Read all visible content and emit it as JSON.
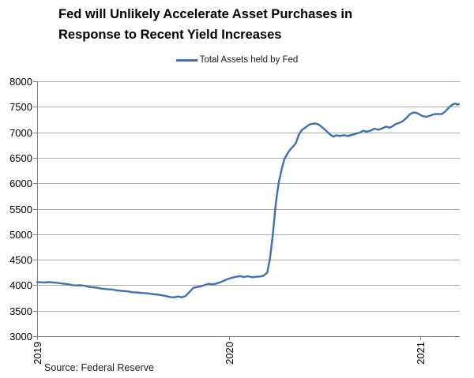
{
  "title": "Fed will Unlikely Accelerate Asset Purchases in Response to Recent Yield Increases",
  "legend": {
    "label": "Total Assets held by Fed"
  },
  "source": "Source: Federal Reserve",
  "colors": {
    "line": "#3c70b9",
    "axis": "#7f7f7f",
    "gridline": "#acacac",
    "text": "#000000"
  },
  "chart_data": {
    "type": "line",
    "title": "Fed will Unlikely Accelerate Asset Purchases in Response to Recent Yield Increases",
    "xlabel": "",
    "ylabel": "",
    "grid": true,
    "legend_position": "top",
    "x_ticks": [
      2019,
      2020,
      2021
    ],
    "y_ticks": [
      3000,
      3500,
      4000,
      4500,
      5000,
      5500,
      6000,
      6500,
      7000,
      7500,
      8000
    ],
    "xlim": [
      2019,
      2021.205
    ],
    "ylim": [
      3000,
      8000
    ],
    "series": [
      {
        "name": "Total Assets held by Fed",
        "color": "#3c70b9",
        "points": [
          [
            2019.0,
            4060
          ],
          [
            2019.02,
            4058
          ],
          [
            2019.04,
            4052
          ],
          [
            2019.06,
            4060
          ],
          [
            2019.08,
            4055
          ],
          [
            2019.1,
            4048
          ],
          [
            2019.12,
            4038
          ],
          [
            2019.14,
            4028
          ],
          [
            2019.16,
            4020
          ],
          [
            2019.185,
            4000
          ],
          [
            2019.205,
            3996
          ],
          [
            2019.225,
            3998
          ],
          [
            2019.25,
            3988
          ],
          [
            2019.27,
            3968
          ],
          [
            2019.29,
            3960
          ],
          [
            2019.31,
            3952
          ],
          [
            2019.33,
            3935
          ],
          [
            2019.35,
            3928
          ],
          [
            2019.37,
            3920
          ],
          [
            2019.395,
            3915
          ],
          [
            2019.415,
            3898
          ],
          [
            2019.435,
            3892
          ],
          [
            2019.455,
            3885
          ],
          [
            2019.475,
            3878
          ],
          [
            2019.495,
            3862
          ],
          [
            2019.515,
            3858
          ],
          [
            2019.535,
            3852
          ],
          [
            2019.555,
            3846
          ],
          [
            2019.575,
            3840
          ],
          [
            2019.595,
            3830
          ],
          [
            2019.615,
            3820
          ],
          [
            2019.635,
            3812
          ],
          [
            2019.655,
            3798
          ],
          [
            2019.675,
            3785
          ],
          [
            2019.695,
            3768
          ],
          [
            2019.715,
            3762
          ],
          [
            2019.735,
            3778
          ],
          [
            2019.755,
            3763
          ],
          [
            2019.775,
            3790
          ],
          [
            2019.795,
            3868
          ],
          [
            2019.815,
            3948
          ],
          [
            2019.835,
            3965
          ],
          [
            2019.855,
            3978
          ],
          [
            2019.875,
            4005
          ],
          [
            2019.895,
            4028
          ],
          [
            2019.915,
            4016
          ],
          [
            2019.935,
            4032
          ],
          [
            2019.955,
            4058
          ],
          [
            2019.975,
            4090
          ],
          [
            2020.0,
            4128
          ],
          [
            2020.02,
            4150
          ],
          [
            2020.04,
            4165
          ],
          [
            2020.06,
            4178
          ],
          [
            2020.08,
            4160
          ],
          [
            2020.1,
            4176
          ],
          [
            2020.12,
            4155
          ],
          [
            2020.14,
            4164
          ],
          [
            2020.16,
            4170
          ],
          [
            2020.18,
            4182
          ],
          [
            2020.2,
            4245
          ],
          [
            2020.215,
            4530
          ],
          [
            2020.23,
            5000
          ],
          [
            2020.245,
            5600
          ],
          [
            2020.26,
            6000
          ],
          [
            2020.275,
            6265
          ],
          [
            2020.29,
            6475
          ],
          [
            2020.305,
            6575
          ],
          [
            2020.32,
            6660
          ],
          [
            2020.335,
            6720
          ],
          [
            2020.35,
            6790
          ],
          [
            2020.365,
            6950
          ],
          [
            2020.38,
            7040
          ],
          [
            2020.4,
            7095
          ],
          [
            2020.42,
            7150
          ],
          [
            2020.44,
            7168
          ],
          [
            2020.455,
            7170
          ],
          [
            2020.47,
            7148
          ],
          [
            2020.49,
            7090
          ],
          [
            2020.51,
            7020
          ],
          [
            2020.53,
            6950
          ],
          [
            2020.545,
            6915
          ],
          [
            2020.56,
            6940
          ],
          [
            2020.58,
            6928
          ],
          [
            2020.6,
            6942
          ],
          [
            2020.62,
            6928
          ],
          [
            2020.645,
            6950
          ],
          [
            2020.665,
            6975
          ],
          [
            2020.685,
            6995
          ],
          [
            2020.7,
            7030
          ],
          [
            2020.72,
            7012
          ],
          [
            2020.74,
            7032
          ],
          [
            2020.76,
            7070
          ],
          [
            2020.78,
            7050
          ],
          [
            2020.8,
            7075
          ],
          [
            2020.82,
            7110
          ],
          [
            2020.84,
            7090
          ],
          [
            2020.855,
            7120
          ],
          [
            2020.87,
            7160
          ],
          [
            2020.885,
            7180
          ],
          [
            2020.905,
            7210
          ],
          [
            2020.925,
            7275
          ],
          [
            2020.945,
            7355
          ],
          [
            2020.965,
            7390
          ],
          [
            2020.985,
            7372
          ],
          [
            2021.01,
            7318
          ],
          [
            2021.03,
            7303
          ],
          [
            2021.05,
            7325
          ],
          [
            2021.07,
            7355
          ],
          [
            2021.09,
            7358
          ],
          [
            2021.11,
            7356
          ],
          [
            2021.13,
            7408
          ],
          [
            2021.15,
            7495
          ],
          [
            2021.17,
            7550
          ],
          [
            2021.183,
            7562
          ],
          [
            2021.192,
            7540
          ],
          [
            2021.2,
            7555
          ]
        ]
      }
    ]
  }
}
